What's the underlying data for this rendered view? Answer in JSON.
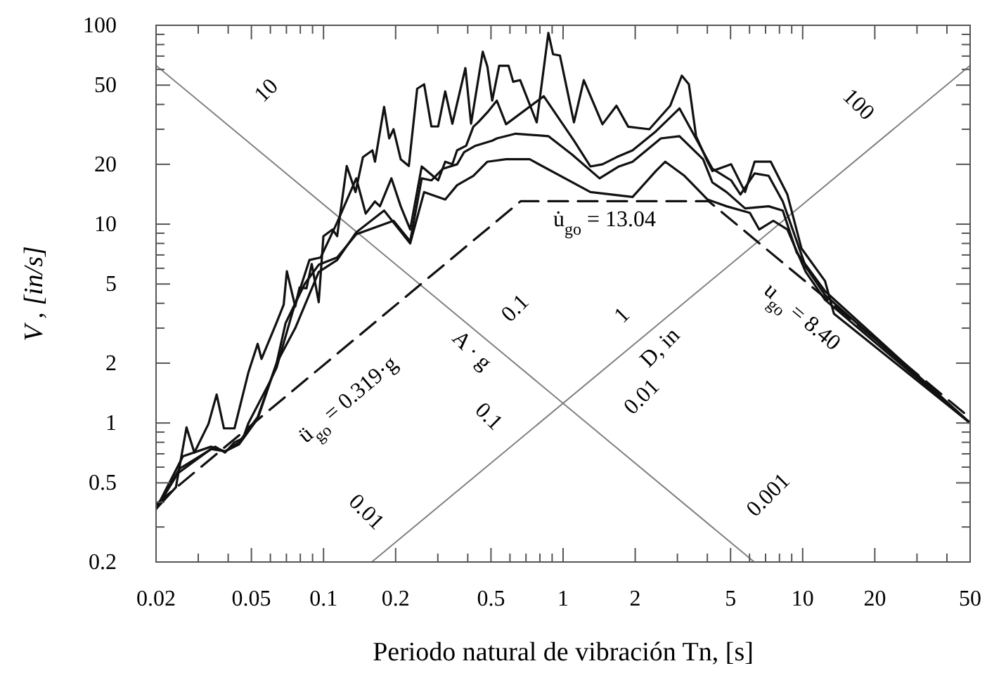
{
  "chart_data": {
    "type": "line",
    "xlabel": "Periodo natural de vibración Tn, [s]",
    "ylabel": "V ,  [in/s]",
    "log": "xy",
    "xlim": [
      0.02,
      50
    ],
    "ylim": [
      0.2,
      100
    ],
    "xticks": [
      0.02,
      {
        "value": 0.03,
        "label": null
      },
      {
        "value": 0.04,
        "label": null
      },
      0.05,
      {
        "value": 0.06,
        "label": null
      },
      {
        "value": 0.07,
        "label": null
      },
      {
        "value": 0.08,
        "label": null
      },
      {
        "value": 0.09,
        "label": null
      },
      0.1,
      0.2,
      {
        "value": 0.3,
        "label": null
      },
      {
        "value": 0.4,
        "label": null
      },
      0.5,
      {
        "value": 0.6,
        "label": null
      },
      {
        "value": 0.7,
        "label": null
      },
      {
        "value": 0.8,
        "label": null
      },
      {
        "value": 0.9,
        "label": null
      },
      1,
      2,
      {
        "value": 3,
        "label": null
      },
      {
        "value": 4,
        "label": null
      },
      5,
      {
        "value": 6,
        "label": null
      },
      {
        "value": 7,
        "label": null
      },
      {
        "value": 8,
        "label": null
      },
      {
        "value": 9,
        "label": null
      },
      10,
      20,
      {
        "value": 30,
        "label": null
      },
      {
        "value": 40,
        "label": null
      },
      50
    ],
    "yticks": [
      0.2,
      {
        "value": 0.3,
        "label": null
      },
      {
        "value": 0.4,
        "label": null
      },
      0.5,
      {
        "value": 0.6,
        "label": null
      },
      {
        "value": 0.7,
        "label": null
      },
      {
        "value": 0.8,
        "label": null
      },
      {
        "value": 0.9,
        "label": null
      },
      1,
      2,
      {
        "value": 3,
        "label": null
      },
      {
        "value": 4,
        "label": null
      },
      5,
      {
        "value": 6,
        "label": null
      },
      {
        "value": 7,
        "label": null
      },
      {
        "value": 8,
        "label": null
      },
      {
        "value": 9,
        "label": null
      },
      10,
      20,
      {
        "value": 30,
        "label": null
      },
      {
        "value": 40,
        "label": null
      },
      50,
      {
        "value": 60,
        "label": null
      },
      {
        "value": 70,
        "label": null
      },
      {
        "value": 80,
        "label": null
      },
      {
        "value": 90,
        "label": null
      },
      100
    ],
    "grid": false,
    "series": [
      {
        "color": "#808080",
        "line_style": "solid",
        "x": [
          0.02,
          6.28
        ],
        "values": [
          62.8,
          0.2
        ]
      },
      {
        "color": "#808080",
        "line_style": "solid",
        "x": [
          0.159,
          50
        ],
        "values": [
          0.2,
          62.8
        ]
      },
      {
        "color": "#111111",
        "line_style": "dashed",
        "x": [
          0.02,
          0.665,
          4.05,
          50
        ],
        "values": [
          0.39,
          13.04,
          13.04,
          1.06
        ]
      },
      {
        "color": "#111111",
        "line_style": "solid",
        "x": [
          0.02,
          0.0242,
          0.0268,
          0.0289,
          0.0331,
          0.0358,
          0.0384,
          0.0425,
          0.0486,
          0.0531,
          0.0551,
          0.0637,
          0.0682,
          0.0703,
          0.0762,
          0.0794,
          0.0849,
          0.0893,
          0.0955,
          0.0999,
          0.109,
          0.114,
          0.125,
          0.136,
          0.146,
          0.16,
          0.164,
          0.179,
          0.188,
          0.196,
          0.21,
          0.227,
          0.246,
          0.263,
          0.282,
          0.301,
          0.322,
          0.345,
          0.391,
          0.413,
          0.462,
          0.483,
          0.506,
          0.541,
          0.592,
          0.619,
          0.662,
          0.776,
          0.868,
          0.908,
          0.97,
          1.11,
          1.22,
          1.46,
          1.67,
          1.87,
          2.29,
          2.8,
          3.13,
          3.35,
          3.59,
          4.01,
          4.2,
          5.03,
          5.75,
          6.3,
          7.36,
          8.63,
          9.88,
          12.4,
          13.5,
          50
        ],
        "values": [
          0.37,
          0.475,
          0.95,
          0.71,
          0.99,
          1.39,
          0.94,
          0.94,
          1.8,
          2.5,
          2.1,
          3.2,
          3.94,
          5.8,
          3.85,
          4.8,
          4.76,
          6.3,
          4.05,
          8.7,
          9.4,
          8.7,
          19.6,
          14.5,
          21.7,
          23.5,
          20.6,
          38.9,
          27,
          30,
          21.2,
          19.6,
          48,
          50.5,
          31,
          31,
          46.5,
          32,
          60.9,
          32,
          73.6,
          62,
          41.8,
          62.6,
          62.6,
          52,
          53,
          32.5,
          91.5,
          71.5,
          70.5,
          32.5,
          53,
          31.8,
          39.4,
          30.9,
          30,
          39.4,
          55.8,
          50.5,
          27.7,
          20.6,
          18.5,
          20,
          14.5,
          20.6,
          20.6,
          14.1,
          7.56,
          5.17,
          3.55,
          1.0
        ]
      },
      {
        "color": "#111111",
        "line_style": "solid",
        "x": [
          0.02,
          0.0251,
          0.0353,
          0.0388,
          0.0425,
          0.0462,
          0.0486,
          0.0595,
          0.0637,
          0.0742,
          0.0873,
          0.0973,
          0.114,
          0.137,
          0.15,
          0.164,
          0.172,
          0.192,
          0.21,
          0.23,
          0.257,
          0.301,
          0.322,
          0.345,
          0.361,
          0.394,
          0.422,
          0.442,
          0.483,
          0.529,
          0.578,
          0.83,
          1.11,
          1.3,
          1.46,
          1.67,
          1.95,
          2.44,
          3.06,
          3.67,
          4.2,
          5.03,
          5.5,
          6.3,
          7.21,
          8.26,
          10.3,
          12.4,
          50
        ],
        "values": [
          0.37,
          0.59,
          0.76,
          0.71,
          0.8,
          0.84,
          1.0,
          1.6,
          1.9,
          3.6,
          6.6,
          6.8,
          10.2,
          17,
          11.3,
          13,
          12.3,
          17,
          12.3,
          9.4,
          19.5,
          16.6,
          20.6,
          20,
          23.5,
          24.8,
          30.9,
          32.5,
          36.5,
          41.8,
          31.8,
          44,
          26.3,
          19.5,
          20,
          21.7,
          23.5,
          29.3,
          38.2,
          25.6,
          19,
          16.6,
          14.1,
          18,
          17.5,
          13,
          6.1,
          4.4,
          1.0
        ]
      },
      {
        "color": "#111111",
        "line_style": "solid",
        "x": [
          0.02,
          0.0247,
          0.0339,
          0.0388,
          0.0444,
          0.0531,
          0.0637,
          0.0694,
          0.0834,
          0.0955,
          0.114,
          0.137,
          0.196,
          0.23,
          0.257,
          0.282,
          0.315,
          0.361,
          0.386,
          0.431,
          0.506,
          0.529,
          0.634,
          0.868,
          1.09,
          1.42,
          1.71,
          1.95,
          2.56,
          3.06,
          3.84,
          4.2,
          4.81,
          5.75,
          7.21,
          8.26,
          9.44,
          12.4,
          50
        ],
        "values": [
          0.37,
          0.56,
          0.74,
          0.72,
          0.78,
          1.05,
          2.0,
          3.17,
          5.0,
          6.25,
          6.8,
          8.9,
          10.4,
          8.2,
          17,
          16.6,
          19,
          20,
          23,
          24.8,
          26.3,
          27,
          28.5,
          27.7,
          22.4,
          17,
          19.5,
          20.6,
          27,
          27.7,
          21.2,
          16.2,
          14.5,
          12,
          12.3,
          11.7,
          7.2,
          4.6,
          1.0
        ]
      },
      {
        "color": "#111111",
        "line_style": "solid",
        "x": [
          0.02,
          0.0259,
          0.0339,
          0.0388,
          0.0444,
          0.0531,
          0.0637,
          0.0762,
          0.0955,
          0.114,
          0.137,
          0.179,
          0.23,
          0.263,
          0.322,
          0.361,
          0.422,
          0.483,
          0.578,
          0.725,
          1.3,
          1.95,
          2.44,
          2.67,
          3.21,
          4.01,
          4.81,
          6.02,
          6.59,
          7.54,
          8.63,
          10.3,
          12.4,
          50
        ],
        "values": [
          0.37,
          0.68,
          0.76,
          0.72,
          0.8,
          1.07,
          2.0,
          3.0,
          5.75,
          6.6,
          9.1,
          11.7,
          8.0,
          14.5,
          13.3,
          15.7,
          17.5,
          20.6,
          21.2,
          21.2,
          14.5,
          13.7,
          18.5,
          20.6,
          17.5,
          13.3,
          12.3,
          11.4,
          9.4,
          10.4,
          9.4,
          5.75,
          4.16,
          1.0
        ]
      }
    ],
    "annotations": [
      "10",
      "0.1",
      "1",
      "100",
      "D, in",
      "A · g",
      "0.1",
      "0.01",
      "0.01",
      "0.001",
      "ü$_{go}$ = 0.319·g",
      "u̇$_{go}$ = 13.04",
      "u$_{go}$ = 8.40"
    ]
  }
}
